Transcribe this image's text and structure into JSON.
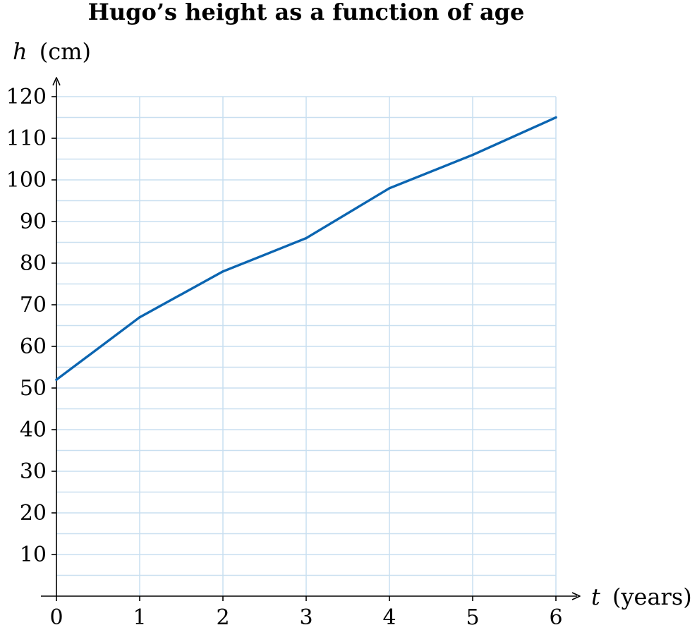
{
  "chart_data": {
    "type": "line",
    "title": "Hugo’s height as a function of age",
    "xlabel": {
      "var": "t",
      "unit": "(years)"
    },
    "ylabel": {
      "var": "h",
      "unit": "(cm)"
    },
    "xlim": [
      0,
      6
    ],
    "ylim": [
      0,
      120
    ],
    "x_ticks": [
      "0",
      "1",
      "2",
      "3",
      "4",
      "5",
      "6"
    ],
    "y_ticks": [
      "10",
      "20",
      "30",
      "40",
      "50",
      "60",
      "70",
      "80",
      "90",
      "100",
      "110",
      "120"
    ],
    "x_tick_values": [
      0,
      1,
      2,
      3,
      4,
      5,
      6
    ],
    "y_tick_values": [
      10,
      20,
      30,
      40,
      50,
      60,
      70,
      80,
      90,
      100,
      110,
      120
    ],
    "grid": true,
    "x_minor_step": 1,
    "y_minor_step": 5,
    "series": [
      {
        "x": [
          0,
          1,
          2,
          3,
          4,
          5,
          6
        ],
        "values": [
          52,
          67,
          78,
          86,
          98,
          106,
          115
        ]
      }
    ],
    "colors": {
      "line": "#0b65b1",
      "grid": "#c9dff0",
      "axis": "#000000"
    }
  }
}
